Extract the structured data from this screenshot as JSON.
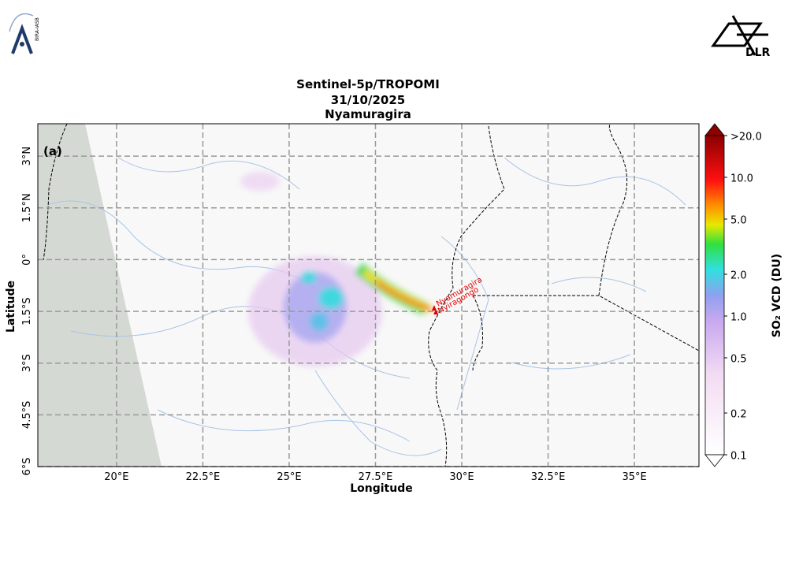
{
  "header": {
    "logo_left": "BIRA-IASB",
    "logo_right": "DLR"
  },
  "map": {
    "title": [
      "Sentinel-5p/TROPOMI",
      "31/10/2025",
      "Nyamuragira"
    ],
    "panel_label": "(a)",
    "xlabel": "Longitude",
    "ylabel": "Latitude",
    "xlim": [
      17.72,
      36.87
    ],
    "ylim": [
      -6,
      3.94
    ],
    "xticks": [
      {
        "value": 20,
        "label": "20°E"
      },
      {
        "value": 22.5,
        "label": "22.5°E"
      },
      {
        "value": 25,
        "label": "25°E"
      },
      {
        "value": 27.5,
        "label": "27.5°E"
      },
      {
        "value": 30,
        "label": "30°E"
      },
      {
        "value": 32.5,
        "label": "32.5°E"
      },
      {
        "value": 35,
        "label": "35°E"
      }
    ],
    "yticks": [
      {
        "value": -6,
        "label": "6°S"
      },
      {
        "value": -4.5,
        "label": "4.5°S"
      },
      {
        "value": -3,
        "label": "3°S"
      },
      {
        "value": -1.5,
        "label": "1.5°S"
      },
      {
        "value": 0,
        "label": "0°"
      },
      {
        "value": 1.5,
        "label": "1.5°N"
      },
      {
        "value": 3,
        "label": "3°N"
      }
    ],
    "grid": true,
    "volcanoes": [
      {
        "name": "Nyamuragira",
        "lon": 29.2,
        "lat": -1.41
      },
      {
        "name": "Nyiragongo",
        "lon": 29.25,
        "lat": -1.52
      }
    ],
    "colorbar": {
      "label": "SO₂ VCD (DU)",
      "scale": "log",
      "lim": [
        0.1,
        20
      ],
      "ticks": [
        {
          "value": 0.1,
          "label": "0.1"
        },
        {
          "value": 0.2,
          "label": "0.2"
        },
        {
          "value": 0.5,
          "label": "0.5"
        },
        {
          "value": 1,
          "label": "1.0"
        },
        {
          "value": 2,
          "label": "2.0"
        },
        {
          "value": 5,
          "label": "5.0"
        },
        {
          "value": 10,
          "label": "10.0"
        },
        {
          "value": 20,
          "label": ">20.0"
        }
      ]
    }
  }
}
